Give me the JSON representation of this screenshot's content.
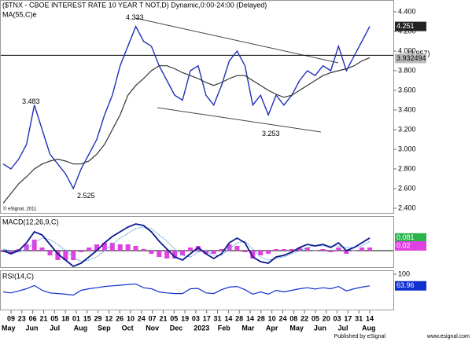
{
  "chart_data": {
    "type": "line",
    "title": "($TNX - CBOE INTEREST RATE 10 YEAR T NOT,D) Dynamic,0:00-24:00 (Delayed)",
    "ma_label": "MA(55,C)e",
    "copyright": "© eSignal, 2011",
    "ylim": [
      2.344,
      4.52
    ],
    "yticks": [
      {
        "value": 4.4,
        "label": "4.400"
      },
      {
        "value": 4.2,
        "label": "4.200"
      },
      {
        "value": 4.0,
        "label": "4.000"
      },
      {
        "value": 3.8,
        "label": "3.800"
      },
      {
        "value": 3.6,
        "label": "3.600"
      },
      {
        "value": 3.4,
        "label": "3.400"
      },
      {
        "value": 3.2,
        "label": "3.200"
      },
      {
        "value": 3.0,
        "label": "3.000"
      },
      {
        "value": 2.8,
        "label": "2.800"
      },
      {
        "value": 2.6,
        "label": "2.600"
      },
      {
        "value": 2.4,
        "label": "2.400"
      }
    ],
    "level": {
      "value": 3.957,
      "label": "(3.957)"
    },
    "annotations": [
      4.333,
      3.483,
      2.525,
      3.253
    ],
    "series": [
      {
        "name": "$TNX",
        "color": "#1f2fb8",
        "values": [
          2.85,
          2.8,
          2.9,
          3.05,
          3.45,
          3.2,
          2.95,
          2.85,
          2.75,
          2.6,
          2.8,
          2.95,
          3.1,
          3.35,
          3.55,
          3.85,
          4.05,
          4.25,
          4.1,
          4.05,
          3.85,
          3.7,
          3.55,
          3.5,
          3.8,
          3.85,
          3.55,
          3.45,
          3.65,
          3.9,
          4.0,
          3.85,
          3.45,
          3.55,
          3.35,
          3.55,
          3.45,
          3.55,
          3.7,
          3.8,
          3.75,
          3.85,
          3.8,
          4.05,
          3.8,
          3.95,
          4.1,
          4.251
        ],
        "value_labels_last": "4.251"
      },
      {
        "name": "MA(55,C)e",
        "color": "#333333",
        "values": [
          2.45,
          2.55,
          2.65,
          2.72,
          2.8,
          2.85,
          2.88,
          2.9,
          2.88,
          2.85,
          2.85,
          2.88,
          2.95,
          3.05,
          3.2,
          3.35,
          3.55,
          3.65,
          3.72,
          3.8,
          3.85,
          3.85,
          3.82,
          3.78,
          3.75,
          3.72,
          3.68,
          3.65,
          3.68,
          3.72,
          3.75,
          3.75,
          3.7,
          3.65,
          3.6,
          3.56,
          3.53,
          3.55,
          3.6,
          3.65,
          3.7,
          3.75,
          3.78,
          3.8,
          3.82,
          3.85,
          3.9,
          3.932494
        ],
        "value_labels_last": "3.932494"
      }
    ],
    "macd": {
      "label": "MACD(12,26,9,C)",
      "ylim": [
        -0.105,
        0.215
      ],
      "macd": {
        "color": "#0a1a8c",
        "values": [
          0.0,
          -0.02,
          0.0,
          0.05,
          0.12,
          0.1,
          0.04,
          -0.02,
          -0.06,
          -0.1,
          -0.08,
          -0.04,
          0.0,
          0.05,
          0.09,
          0.12,
          0.15,
          0.17,
          0.16,
          0.12,
          0.06,
          0.01,
          -0.04,
          -0.06,
          -0.02,
          0.02,
          -0.02,
          -0.05,
          -0.02,
          0.05,
          0.08,
          0.05,
          -0.04,
          -0.07,
          -0.08,
          -0.04,
          -0.03,
          -0.01,
          0.02,
          0.04,
          0.03,
          0.04,
          0.02,
          0.05,
          0.0,
          0.02,
          0.05,
          0.081
        ],
        "value_labels_last": "0.081"
      },
      "signal": {
        "color": "#5aa0e6",
        "values": [
          0.01,
          0.0,
          -0.01,
          0.01,
          0.05,
          0.08,
          0.07,
          0.04,
          0.0,
          -0.04,
          -0.07,
          -0.06,
          -0.04,
          0.0,
          0.04,
          0.08,
          0.11,
          0.14,
          0.15,
          0.14,
          0.1,
          0.06,
          0.01,
          -0.03,
          -0.04,
          -0.01,
          0.0,
          -0.03,
          -0.03,
          0.01,
          0.05,
          0.06,
          0.01,
          -0.04,
          -0.06,
          -0.05,
          -0.04,
          -0.02,
          0.0,
          0.02,
          0.03,
          0.03,
          0.03,
          0.03,
          0.02,
          0.02,
          0.03,
          0.06
        ]
      },
      "histogram": {
        "color": "#e040e0",
        "values": [
          -0.01,
          -0.02,
          0.01,
          0.04,
          0.07,
          0.02,
          -0.03,
          -0.06,
          -0.06,
          -0.06,
          -0.01,
          0.02,
          0.04,
          0.05,
          0.05,
          0.04,
          0.04,
          0.03,
          0.01,
          -0.02,
          -0.04,
          -0.05,
          -0.05,
          -0.03,
          0.02,
          0.03,
          -0.02,
          -0.02,
          0.01,
          0.04,
          0.03,
          -0.01,
          -0.05,
          -0.03,
          -0.02,
          0.01,
          0.01,
          0.01,
          0.02,
          0.02,
          0.0,
          0.01,
          -0.01,
          0.02,
          -0.02,
          0.0,
          0.02,
          0.02
        ],
        "value_labels_last": "0.02"
      }
    },
    "rsi": {
      "label": "RSI(14,C)",
      "ylim": [
        -10,
        110
      ],
      "yticks": [
        100
      ],
      "color": "#1030d0",
      "values": [
        45,
        42,
        48,
        55,
        65,
        50,
        42,
        40,
        38,
        35,
        50,
        55,
        58,
        62,
        64,
        66,
        68,
        70,
        58,
        55,
        45,
        42,
        40,
        40,
        55,
        56,
        42,
        40,
        52,
        60,
        62,
        52,
        38,
        45,
        38,
        50,
        45,
        50,
        55,
        58,
        54,
        58,
        55,
        62,
        48,
        55,
        60,
        63.96
      ],
      "value_labels_last": "63.96"
    },
    "x_labels_top": [
      "09",
      "23",
      "06",
      "21",
      "05",
      "18",
      "01",
      "15",
      "29",
      "12",
      "26",
      "10",
      "24",
      "07",
      "21",
      "05",
      "19",
      "03",
      "17",
      "31",
      "14",
      "28",
      "14",
      "28",
      "10",
      "24",
      "08",
      "22",
      "05",
      "20",
      "03",
      "17",
      "31",
      "14"
    ],
    "x_labels_bottom": [
      "May",
      "Jun",
      "Jul",
      "Aug",
      "Sep",
      "Oct",
      "Nov",
      "Dec",
      "2023",
      "Feb",
      "Mar",
      "Apr",
      "May",
      "Jun",
      "Jul",
      "Aug"
    ],
    "footer_left": "Published by eSignal",
    "footer_right": "www.esignal.com"
  }
}
